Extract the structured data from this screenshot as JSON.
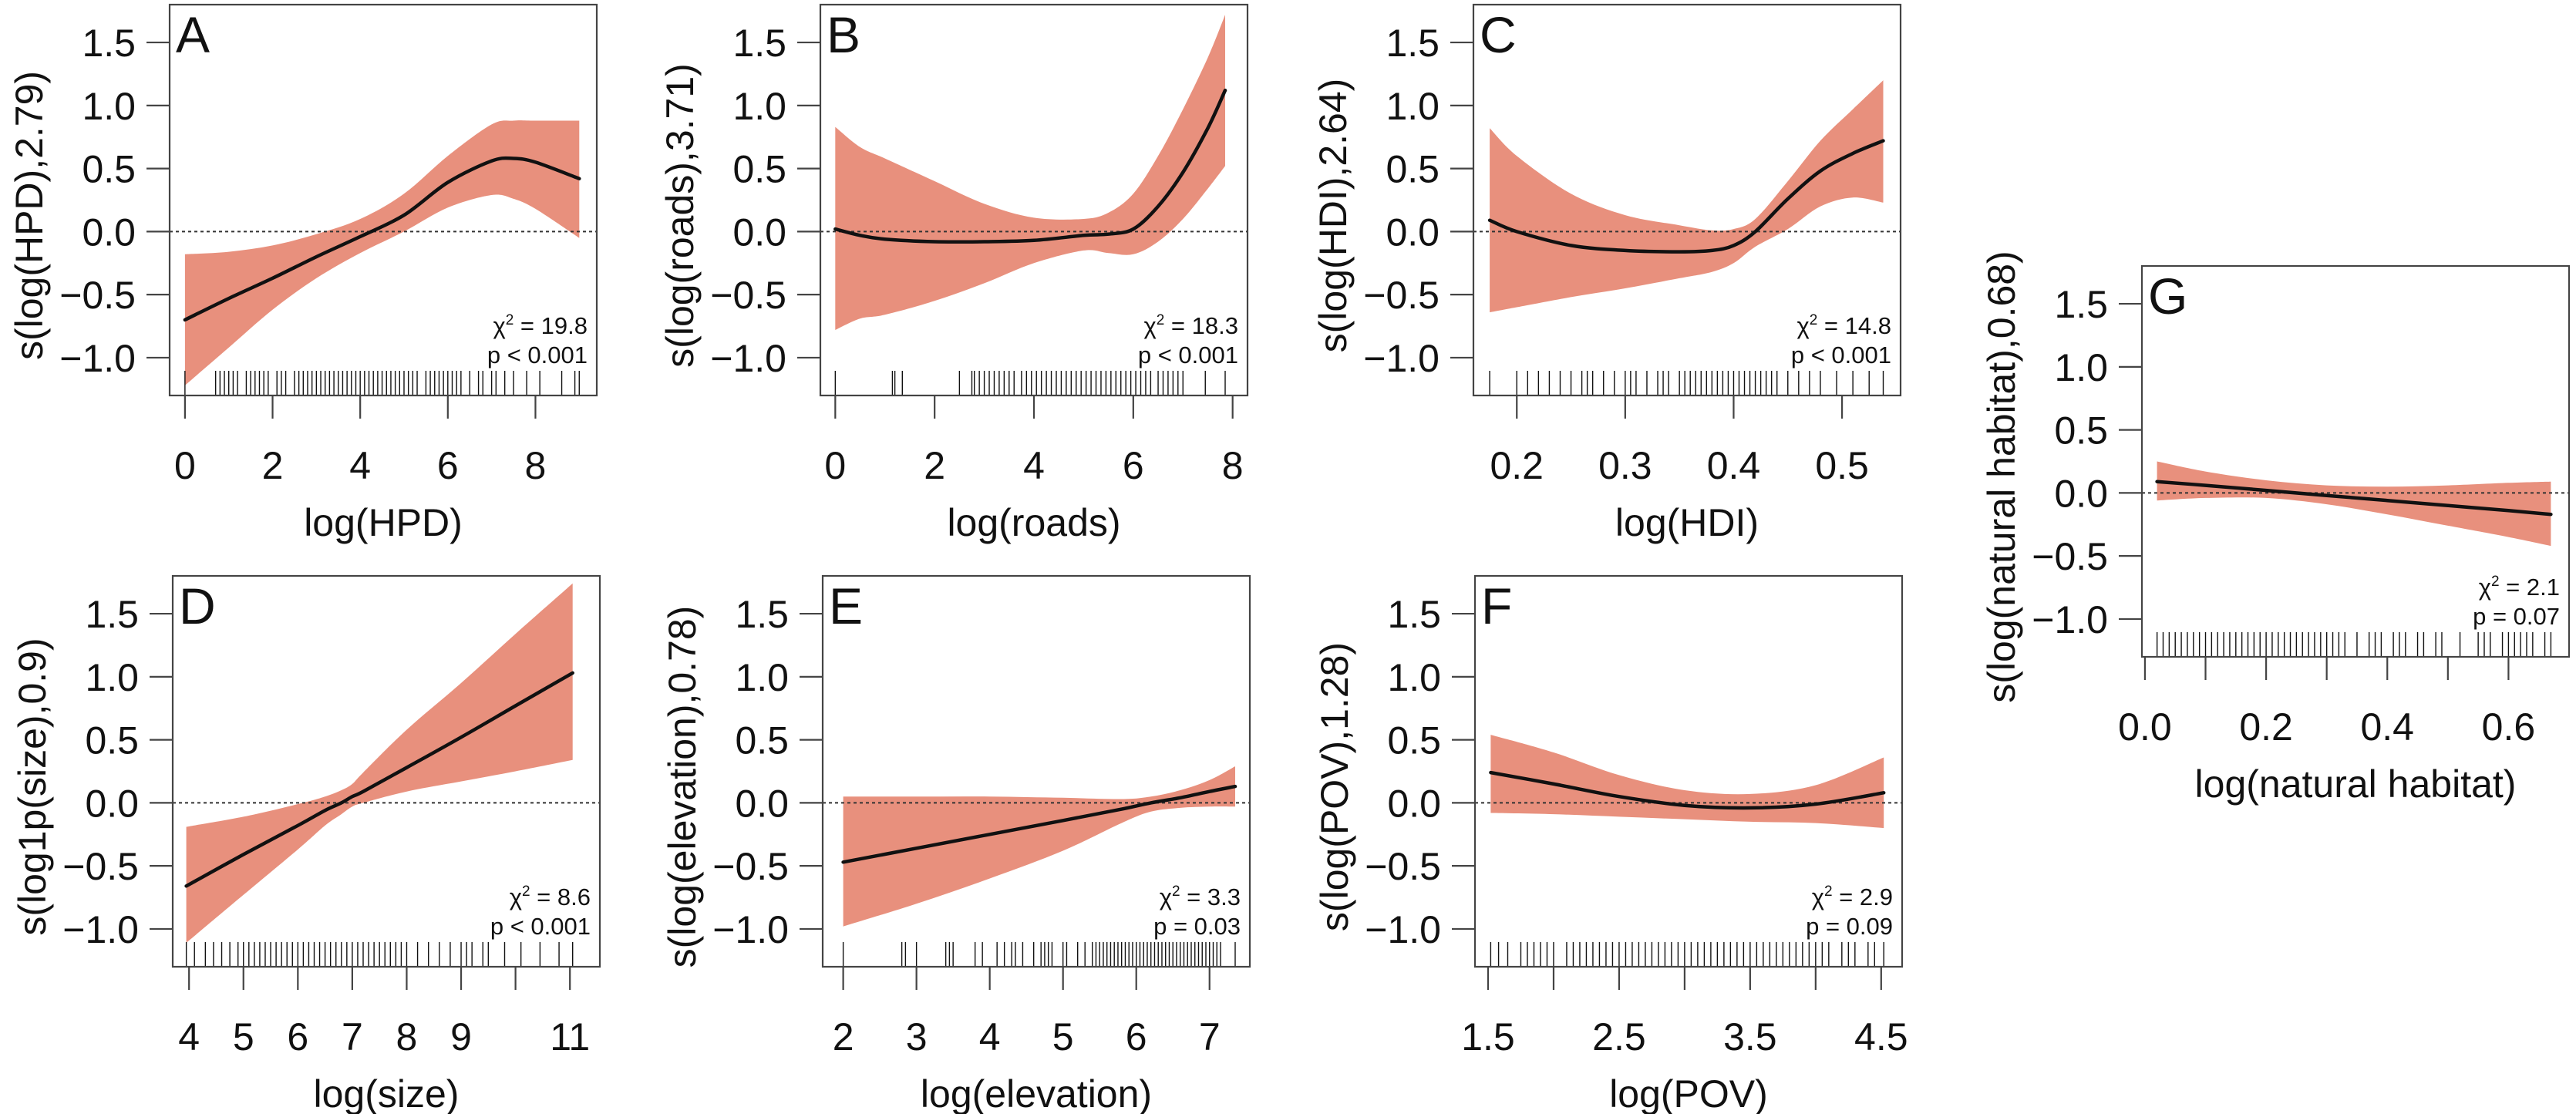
{
  "chart_data": [
    {
      "type": "line",
      "panel": "A",
      "xlabel": "log(HPD)",
      "ylabel": "s(log(HPD),2.79)",
      "xlim": [
        -0.35,
        9.4
      ],
      "ylim": [
        -1.3,
        1.8
      ],
      "xticks": [
        0,
        2,
        4,
        6,
        8
      ],
      "xtick_labels": [
        "0",
        "2",
        "4",
        "6",
        "8"
      ],
      "yticks": [
        -1.0,
        -0.5,
        0.0,
        0.5,
        1.0,
        1.5
      ],
      "ytick_labels": [
        "-1.0",
        "-0.5",
        "0.0",
        "0.5",
        "1.0",
        "1.5"
      ],
      "stat_chi2": "19.8",
      "stat_p": "p < 0.001",
      "x": [
        0,
        1,
        2,
        3,
        4,
        5,
        6,
        7,
        7.5,
        8,
        9
      ],
      "fit": [
        -0.7,
        -0.53,
        -0.37,
        -0.2,
        -0.04,
        0.13,
        0.39,
        0.56,
        0.58,
        0.55,
        0.42
      ],
      "upper": [
        -0.18,
        -0.16,
        -0.11,
        -0.02,
        0.1,
        0.3,
        0.6,
        0.85,
        0.88,
        0.88,
        0.88
      ],
      "lower": [
        -1.22,
        -0.92,
        -0.62,
        -0.37,
        -0.17,
        0.0,
        0.19,
        0.29,
        0.26,
        0.18,
        -0.05
      ],
      "rug": [
        0,
        0.7,
        0.8,
        0.9,
        1.0,
        1.1,
        1.2,
        1.4,
        1.5,
        1.6,
        1.7,
        1.8,
        1.9,
        2.1,
        2.2,
        2.3,
        2.5,
        2.6,
        2.7,
        2.8,
        2.9,
        3.0,
        3.1,
        3.2,
        3.3,
        3.4,
        3.5,
        3.6,
        3.7,
        3.8,
        3.9,
        4.0,
        4.1,
        4.2,
        4.3,
        4.4,
        4.5,
        4.6,
        4.7,
        4.8,
        4.9,
        5.0,
        5.1,
        5.2,
        5.3,
        5.5,
        5.6,
        5.7,
        5.8,
        5.9,
        6.0,
        6.1,
        6.2,
        6.3,
        6.5,
        6.7,
        6.8,
        7.0,
        7.1,
        7.3,
        7.5,
        7.8,
        8.1,
        8.6,
        8.9,
        9.0
      ]
    },
    {
      "type": "line",
      "panel": "B",
      "xlabel": "log(roads)",
      "ylabel": "s(log(roads),3.71)",
      "xlim": [
        -0.3,
        8.3
      ],
      "ylim": [
        -1.3,
        1.8
      ],
      "xticks": [
        0,
        2,
        4,
        6,
        8
      ],
      "xtick_labels": [
        "0",
        "2",
        "4",
        "6",
        "8"
      ],
      "yticks": [
        -1.0,
        -0.5,
        0.0,
        0.5,
        1.0,
        1.5
      ],
      "ytick_labels": [
        "-1.0",
        "-0.5",
        "0.0",
        "0.5",
        "1.0",
        "1.5"
      ],
      "stat_chi2": "18.3",
      "stat_p": "p < 0.001",
      "x": [
        0,
        0.5,
        1,
        2,
        3,
        4,
        5,
        5.5,
        6,
        6.5,
        7,
        7.5,
        7.85
      ],
      "fit": [
        0.02,
        -0.03,
        -0.06,
        -0.08,
        -0.08,
        -0.07,
        -0.03,
        -0.02,
        0.02,
        0.2,
        0.47,
        0.82,
        1.12
      ],
      "upper": [
        0.83,
        0.67,
        0.58,
        0.4,
        0.22,
        0.11,
        0.1,
        0.15,
        0.3,
        0.6,
        0.97,
        1.38,
        1.72
      ],
      "lower": [
        -0.78,
        -0.69,
        -0.66,
        -0.55,
        -0.41,
        -0.25,
        -0.15,
        -0.17,
        -0.18,
        -0.08,
        0.1,
        0.34,
        0.52
      ],
      "rug": [
        0,
        1.15,
        1.2,
        1.35,
        2.5,
        2.75,
        2.8,
        2.9,
        3.0,
        3.1,
        3.2,
        3.3,
        3.4,
        3.5,
        3.6,
        3.75,
        3.85,
        3.95,
        4.05,
        4.15,
        4.25,
        4.35,
        4.45,
        4.55,
        4.65,
        4.75,
        4.85,
        4.95,
        5.05,
        5.15,
        5.25,
        5.35,
        5.45,
        5.55,
        5.65,
        5.75,
        5.85,
        5.95,
        6.05,
        6.15,
        6.25,
        6.35,
        6.5,
        6.6,
        6.7,
        6.8,
        6.9,
        7.0,
        7.45,
        7.85
      ]
    },
    {
      "type": "line",
      "panel": "C",
      "xlabel": "log(HDI)",
      "ylabel": "s(log(HDI),2.64)",
      "xlim": [
        0.16,
        0.554
      ],
      "ylim": [
        -1.3,
        1.8
      ],
      "xticks": [
        0.2,
        0.3,
        0.4,
        0.5
      ],
      "xtick_labels": [
        "0.2",
        "0.3",
        "0.4",
        "0.5"
      ],
      "yticks": [
        -1.0,
        -0.5,
        0.0,
        0.5,
        1.0,
        1.5
      ],
      "ytick_labels": [
        "-1.0",
        "-0.5",
        "0.0",
        "0.5",
        "1.0",
        "1.5"
      ],
      "stat_chi2": "14.8",
      "stat_p": "p < 0.001",
      "x": [
        0.175,
        0.2,
        0.25,
        0.3,
        0.35,
        0.38,
        0.4,
        0.42,
        0.45,
        0.48,
        0.51,
        0.538
      ],
      "fit": [
        0.09,
        0.0,
        -0.11,
        -0.15,
        -0.16,
        -0.15,
        -0.11,
        0.0,
        0.26,
        0.48,
        0.62,
        0.72
      ],
      "upper": [
        0.82,
        0.6,
        0.3,
        0.13,
        0.05,
        0.01,
        0.02,
        0.1,
        0.4,
        0.72,
        0.97,
        1.2
      ],
      "lower": [
        -0.64,
        -0.6,
        -0.52,
        -0.45,
        -0.37,
        -0.32,
        -0.25,
        -0.12,
        0.02,
        0.2,
        0.27,
        0.23
      ],
      "rug": [
        0.175,
        0.2,
        0.21,
        0.22,
        0.23,
        0.24,
        0.25,
        0.26,
        0.265,
        0.27,
        0.28,
        0.29,
        0.3,
        0.305,
        0.31,
        0.32,
        0.33,
        0.335,
        0.34,
        0.35,
        0.355,
        0.36,
        0.365,
        0.37,
        0.375,
        0.38,
        0.385,
        0.39,
        0.395,
        0.4,
        0.405,
        0.41,
        0.415,
        0.42,
        0.425,
        0.43,
        0.435,
        0.44,
        0.45,
        0.46,
        0.47,
        0.48,
        0.495,
        0.51,
        0.525,
        0.538
      ]
    },
    {
      "type": "line",
      "panel": "D",
      "xlabel": "log(size)",
      "ylabel": "s(log1p(size),0.9)",
      "xlim": [
        3.7,
        11.55
      ],
      "ylim": [
        -1.3,
        1.8
      ],
      "xticks": [
        4,
        5,
        6,
        7,
        8,
        9,
        10,
        11
      ],
      "xtick_labels": [
        "4",
        "5",
        "6",
        "7",
        "8",
        "9",
        "",
        "11"
      ],
      "yticks": [
        -1.0,
        -0.5,
        0.0,
        0.5,
        1.0,
        1.5
      ],
      "ytick_labels": [
        "-1.0",
        "-0.5",
        "0.0",
        "0.5",
        "1.0",
        "1.5"
      ],
      "stat_chi2": "8.6",
      "stat_p": "p < 0.001",
      "x": [
        3.95,
        5,
        6,
        6.5,
        6.8,
        7,
        7.2,
        8,
        9,
        10,
        11.05
      ],
      "fit": [
        -0.66,
        -0.41,
        -0.18,
        -0.06,
        0.0,
        0.05,
        0.09,
        0.28,
        0.52,
        0.77,
        1.03
      ],
      "upper": [
        -0.19,
        -0.11,
        -0.01,
        0.05,
        0.1,
        0.15,
        0.24,
        0.58,
        0.95,
        1.34,
        1.74
      ],
      "lower": [
        -1.11,
        -0.73,
        -0.37,
        -0.18,
        -0.09,
        -0.03,
        0.0,
        0.09,
        0.17,
        0.25,
        0.34
      ],
      "rug": [
        3.95,
        4.1,
        4.3,
        4.45,
        4.6,
        4.75,
        4.9,
        5.0,
        5.1,
        5.2,
        5.3,
        5.4,
        5.5,
        5.6,
        5.7,
        5.8,
        5.9,
        6.0,
        6.1,
        6.2,
        6.3,
        6.4,
        6.5,
        6.6,
        6.7,
        6.8,
        6.9,
        7.0,
        7.1,
        7.2,
        7.3,
        7.4,
        7.5,
        7.6,
        7.7,
        7.8,
        7.9,
        8.0,
        8.2,
        8.4,
        8.6,
        8.8,
        9.0,
        9.1,
        9.2,
        9.4,
        9.5,
        9.8,
        10.1,
        10.45,
        10.8,
        11.05
      ]
    },
    {
      "type": "line",
      "panel": "E",
      "xlabel": "log(elevation)",
      "ylabel": "s(log(elevation),0.78)",
      "xlim": [
        1.72,
        7.55
      ],
      "ylim": [
        -1.3,
        1.8
      ],
      "xticks": [
        2,
        3,
        4,
        5,
        6,
        7
      ],
      "xtick_labels": [
        "2",
        "3",
        "4",
        "5",
        "6",
        "7"
      ],
      "yticks": [
        -1.0,
        -0.5,
        0.0,
        0.5,
        1.0,
        1.5
      ],
      "ytick_labels": [
        "-1.0",
        "-0.5",
        "0.0",
        "0.5",
        "1.0",
        "1.5"
      ],
      "stat_chi2": "3.3",
      "stat_p": "p = 0.03",
      "x": [
        2,
        3,
        4,
        5,
        5.8,
        6.2,
        6.6,
        7,
        7.35
      ],
      "fit": [
        -0.47,
        -0.36,
        -0.25,
        -0.14,
        -0.05,
        0.0,
        0.04,
        0.09,
        0.13
      ],
      "upper": [
        0.05,
        0.05,
        0.05,
        0.04,
        0.03,
        0.05,
        0.1,
        0.18,
        0.29
      ],
      "lower": [
        -0.98,
        -0.8,
        -0.6,
        -0.38,
        -0.16,
        -0.07,
        -0.04,
        -0.03,
        -0.03
      ],
      "rug": [
        2.0,
        2.8,
        2.85,
        3.0,
        3.4,
        3.45,
        3.5,
        3.8,
        3.9,
        4.1,
        4.2,
        4.3,
        4.35,
        4.45,
        4.6,
        4.7,
        4.75,
        4.8,
        4.85,
        5.0,
        5.05,
        5.2,
        5.3,
        5.4,
        5.45,
        5.5,
        5.55,
        5.6,
        5.65,
        5.7,
        5.75,
        5.8,
        5.85,
        5.9,
        5.95,
        6.0,
        6.05,
        6.1,
        6.15,
        6.2,
        6.25,
        6.3,
        6.35,
        6.4,
        6.45,
        6.5,
        6.55,
        6.6,
        6.65,
        6.7,
        6.75,
        6.8,
        6.85,
        6.9,
        6.95,
        7.0,
        7.05,
        7.1,
        7.15,
        7.35
      ]
    },
    {
      "type": "line",
      "panel": "F",
      "xlabel": "log(POV)",
      "ylabel": "s(log(POV),1.28)",
      "xlim": [
        1.4,
        4.66
      ],
      "ylim": [
        -1.3,
        1.8
      ],
      "xticks": [
        1.5,
        2.0,
        2.5,
        3.0,
        3.5,
        4.0,
        4.5
      ],
      "xtick_labels": [
        "1.5",
        "",
        "2.5",
        "",
        "3.5",
        "",
        "4.5"
      ],
      "yticks": [
        -1.0,
        -0.5,
        0.0,
        0.5,
        1.0,
        1.5
      ],
      "ytick_labels": [
        "-1.0",
        "-0.5",
        "0.0",
        "0.5",
        "1.0",
        "1.5"
      ],
      "stat_chi2": "2.9",
      "stat_p": "p = 0.09",
      "x": [
        1.52,
        2.0,
        2.5,
        3.0,
        3.5,
        4.0,
        4.52
      ],
      "fit": [
        0.24,
        0.15,
        0.05,
        -0.02,
        -0.04,
        -0.01,
        0.08
      ],
      "upper": [
        0.54,
        0.4,
        0.22,
        0.1,
        0.07,
        0.14,
        0.36
      ],
      "lower": [
        -0.08,
        -0.09,
        -0.11,
        -0.13,
        -0.15,
        -0.16,
        -0.2
      ],
      "rug": [
        1.52,
        1.58,
        1.65,
        1.75,
        1.8,
        1.85,
        1.9,
        1.95,
        2.0,
        2.1,
        2.15,
        2.2,
        2.25,
        2.3,
        2.35,
        2.4,
        2.45,
        2.5,
        2.55,
        2.6,
        2.65,
        2.7,
        2.75,
        2.8,
        2.85,
        2.9,
        2.95,
        3.0,
        3.05,
        3.1,
        3.15,
        3.2,
        3.25,
        3.3,
        3.35,
        3.4,
        3.45,
        3.5,
        3.55,
        3.6,
        3.65,
        3.7,
        3.75,
        3.8,
        3.85,
        3.9,
        3.95,
        4.0,
        4.05,
        4.1,
        4.2,
        4.25,
        4.3,
        4.4,
        4.45,
        4.52
      ]
    },
    {
      "type": "line",
      "panel": "G",
      "xlabel": "log(natural habitat)",
      "ylabel": "s(log(natural habitat),0.68)",
      "xlim": [
        -0.005,
        0.7
      ],
      "ylim": [
        -1.3,
        1.8
      ],
      "xticks": [
        0.0,
        0.1,
        0.2,
        0.3,
        0.4,
        0.5,
        0.6
      ],
      "xtick_labels": [
        "0.0",
        "",
        "0.2",
        "",
        "0.4",
        "",
        "0.6"
      ],
      "yticks": [
        -1.0,
        -0.5,
        0.0,
        0.5,
        1.0,
        1.5
      ],
      "ytick_labels": [
        "-1.0",
        "-0.5",
        "0.0",
        "0.5",
        "1.0",
        "1.5"
      ],
      "stat_chi2": "2.1",
      "stat_p": "p = 0.07",
      "x": [
        0.02,
        0.1,
        0.2,
        0.3,
        0.4,
        0.5,
        0.6,
        0.67
      ],
      "fit": [
        0.09,
        0.06,
        0.02,
        -0.02,
        -0.06,
        -0.1,
        -0.14,
        -0.17
      ],
      "upper": [
        0.25,
        0.17,
        0.1,
        0.06,
        0.05,
        0.06,
        0.08,
        0.09
      ],
      "lower": [
        -0.06,
        -0.04,
        -0.04,
        -0.09,
        -0.17,
        -0.26,
        -0.35,
        -0.42
      ],
      "rug": [
        0.02,
        0.03,
        0.04,
        0.05,
        0.06,
        0.07,
        0.08,
        0.09,
        0.1,
        0.11,
        0.12,
        0.13,
        0.14,
        0.15,
        0.16,
        0.17,
        0.18,
        0.19,
        0.2,
        0.21,
        0.22,
        0.23,
        0.24,
        0.25,
        0.26,
        0.27,
        0.28,
        0.29,
        0.3,
        0.31,
        0.32,
        0.33,
        0.35,
        0.37,
        0.38,
        0.39,
        0.41,
        0.42,
        0.43,
        0.45,
        0.46,
        0.48,
        0.49,
        0.52,
        0.55,
        0.56,
        0.57,
        0.59,
        0.6,
        0.61,
        0.62,
        0.63,
        0.64,
        0.66,
        0.67
      ]
    }
  ],
  "colors": {
    "band": "#E8907D",
    "fit": "#111111",
    "frame": "#444444"
  },
  "stat_chi2_prefix": "χ",
  "stat_chi2_sup": "2",
  "stat_chi2_eq": " = "
}
